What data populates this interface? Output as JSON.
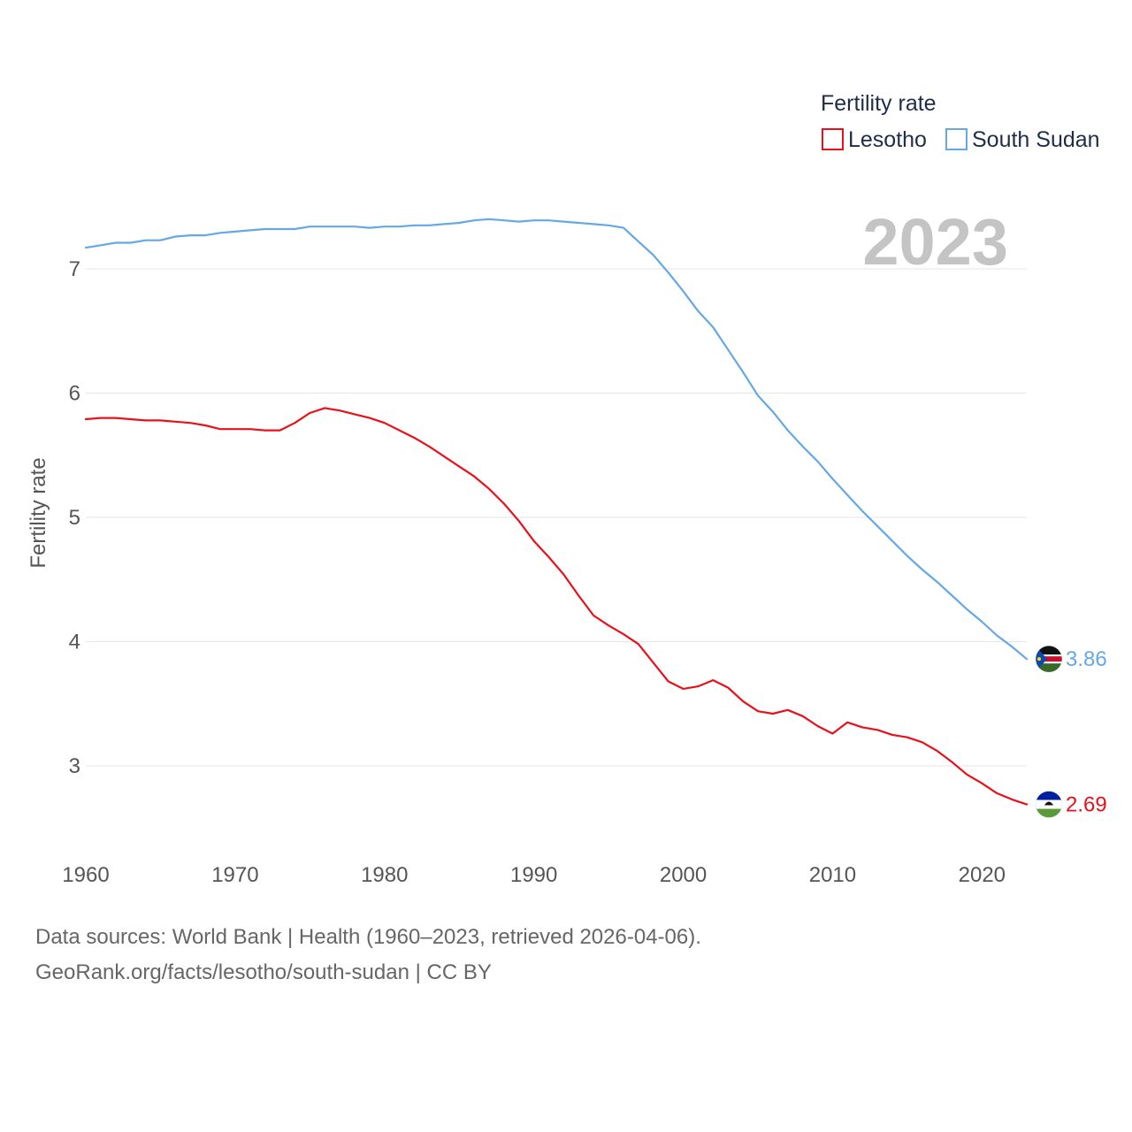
{
  "chart_data": {
    "type": "line",
    "title": "",
    "ylabel": "Fertility rate",
    "xlabel": "",
    "legend_title": "Fertility rate",
    "current_year": "2023",
    "xlim": [
      1960,
      2023
    ],
    "ylim": [
      2.4,
      7.7
    ],
    "x_ticks": [
      1960,
      1970,
      1980,
      1990,
      2000,
      2010,
      2020
    ],
    "y_ticks": [
      3,
      4,
      5,
      6,
      7
    ],
    "x": [
      1960,
      1961,
      1962,
      1963,
      1964,
      1965,
      1966,
      1967,
      1968,
      1969,
      1970,
      1971,
      1972,
      1973,
      1974,
      1975,
      1976,
      1977,
      1978,
      1979,
      1980,
      1981,
      1982,
      1983,
      1984,
      1985,
      1986,
      1987,
      1988,
      1989,
      1990,
      1991,
      1992,
      1993,
      1994,
      1995,
      1996,
      1997,
      1998,
      1999,
      2000,
      2001,
      2002,
      2003,
      2004,
      2005,
      2006,
      2007,
      2008,
      2009,
      2010,
      2011,
      2012,
      2013,
      2014,
      2015,
      2016,
      2017,
      2018,
      2019,
      2020,
      2021,
      2022,
      2023
    ],
    "series": [
      {
        "name": "Lesotho",
        "color": "#e8111a",
        "end_label": "2.69",
        "flag": "lesotho-flag",
        "values": [
          5.79,
          5.8,
          5.8,
          5.79,
          5.78,
          5.78,
          5.77,
          5.76,
          5.74,
          5.71,
          5.71,
          5.71,
          5.7,
          5.7,
          5.76,
          5.84,
          5.88,
          5.86,
          5.83,
          5.8,
          5.76,
          5.7,
          5.64,
          5.57,
          5.49,
          5.41,
          5.33,
          5.23,
          5.11,
          4.97,
          4.81,
          4.68,
          4.54,
          4.37,
          4.21,
          4.13,
          4.06,
          3.98,
          3.83,
          3.68,
          3.62,
          3.64,
          3.69,
          3.63,
          3.52,
          3.44,
          3.42,
          3.45,
          3.4,
          3.32,
          3.26,
          3.35,
          3.31,
          3.29,
          3.25,
          3.23,
          3.19,
          3.12,
          3.03,
          2.93,
          2.86,
          2.78,
          2.73,
          2.69
        ]
      },
      {
        "name": "South Sudan",
        "color": "#64a8e6",
        "end_label": "3.86",
        "flag": "south-sudan-flag",
        "values": [
          7.17,
          7.19,
          7.21,
          7.21,
          7.23,
          7.23,
          7.26,
          7.27,
          7.27,
          7.29,
          7.3,
          7.31,
          7.32,
          7.32,
          7.32,
          7.34,
          7.34,
          7.34,
          7.34,
          7.33,
          7.34,
          7.34,
          7.35,
          7.35,
          7.36,
          7.37,
          7.39,
          7.4,
          7.39,
          7.38,
          7.39,
          7.39,
          7.38,
          7.37,
          7.36,
          7.35,
          7.33,
          7.22,
          7.11,
          6.97,
          6.82,
          6.66,
          6.53,
          6.35,
          6.17,
          5.98,
          5.85,
          5.7,
          5.57,
          5.45,
          5.31,
          5.18,
          5.05,
          4.93,
          4.81,
          4.69,
          4.58,
          4.48,
          4.37,
          4.26,
          4.16,
          4.05,
          3.96,
          3.86
        ]
      }
    ]
  },
  "footer": {
    "sources": "Data sources: World Bank | Health (1960–2023, retrieved 2026-04-06).",
    "link": "GeoRank.org/facts/lesotho/south-sudan | CC BY"
  }
}
